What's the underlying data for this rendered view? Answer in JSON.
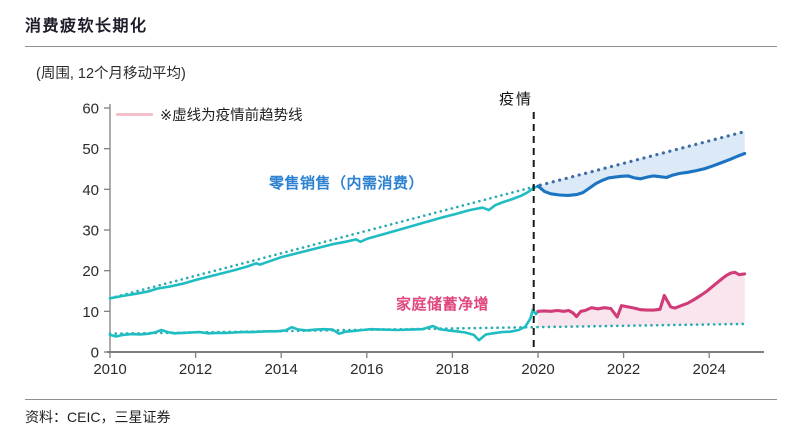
{
  "header": {
    "title": "消费疲软长期化"
  },
  "footer": {
    "source": "资料：CEIC，三星证券"
  },
  "chart_data": {
    "type": "line",
    "subtitle": "(周围, 12个月移动平均)",
    "note": "※虚线为疫情前趋势线",
    "pandemic_label": "疫情",
    "pandemic_x": 2019.9,
    "labels": {
      "retail": "零售销售（内需消费）",
      "savings": "家庭储蓄净增"
    },
    "xlim": [
      2010,
      2025.1
    ],
    "ylim": [
      0,
      60
    ],
    "x_ticks": [
      2010,
      2012,
      2014,
      2016,
      2018,
      2020,
      2022,
      2024
    ],
    "y_ticks": [
      0,
      10,
      20,
      30,
      40,
      50,
      60
    ],
    "grid": false,
    "legend_position": "none",
    "colors": {
      "teal": "#1fbdc2",
      "blue": "#1b74c2",
      "pink": "#d13c78",
      "blue_trend": "#3d6da6",
      "teal_trend": "#27abb1",
      "blue_fill": "#dce9f6",
      "pink_fill": "#f9e5ee",
      "axis": "#7f7f7f",
      "tick_text": "#2b2b2b",
      "pandemic_line": "#1a1a1a",
      "note_swatch": "#f5bfca",
      "retail_label": "#2e82d2",
      "savings_label": "#e0487f"
    },
    "series": [
      {
        "id": "retail-trend-pre",
        "name": "零售销售疫情前趋势线",
        "dotted": true,
        "color": "teal_trend",
        "points": [
          [
            2010.0,
            13.2
          ],
          [
            2019.9,
            40.6
          ]
        ]
      },
      {
        "id": "retail-trend-post",
        "name": "零售销售疫情前趋势线(延长)",
        "dotted": true,
        "color": "blue_trend",
        "points": [
          [
            2019.9,
            40.6
          ],
          [
            2024.83,
            54.2
          ]
        ]
      },
      {
        "id": "savings-trend",
        "name": "家庭储蓄疫情前趋势线",
        "dotted": true,
        "color": "teal_trend",
        "points": [
          [
            2010.0,
            4.5
          ],
          [
            2024.83,
            6.9
          ]
        ]
      },
      {
        "id": "retail-pre",
        "name": "零售销售（内需消费）2010-2020",
        "dotted": false,
        "color": "teal",
        "points": [
          [
            2010.0,
            13.2
          ],
          [
            2010.3,
            13.8
          ],
          [
            2010.6,
            14.3
          ],
          [
            2010.9,
            14.9
          ],
          [
            2011.1,
            15.6
          ],
          [
            2011.4,
            16.1
          ],
          [
            2011.7,
            16.8
          ],
          [
            2012.0,
            17.7
          ],
          [
            2012.3,
            18.5
          ],
          [
            2012.6,
            19.3
          ],
          [
            2012.9,
            20.1
          ],
          [
            2013.2,
            21.0
          ],
          [
            2013.42,
            21.8
          ],
          [
            2013.5,
            21.5
          ],
          [
            2013.7,
            22.2
          ],
          [
            2014.0,
            23.3
          ],
          [
            2014.3,
            24.1
          ],
          [
            2014.6,
            24.9
          ],
          [
            2014.9,
            25.7
          ],
          [
            2015.2,
            26.5
          ],
          [
            2015.5,
            27.1
          ],
          [
            2015.75,
            27.7
          ],
          [
            2015.85,
            27.1
          ],
          [
            2016.0,
            27.8
          ],
          [
            2016.3,
            28.7
          ],
          [
            2016.6,
            29.6
          ],
          [
            2016.9,
            30.5
          ],
          [
            2017.2,
            31.4
          ],
          [
            2017.5,
            32.3
          ],
          [
            2017.8,
            33.2
          ],
          [
            2018.1,
            34.0
          ],
          [
            2018.4,
            34.9
          ],
          [
            2018.7,
            35.5
          ],
          [
            2018.85,
            34.9
          ],
          [
            2019.0,
            36.1
          ],
          [
            2019.2,
            36.9
          ],
          [
            2019.4,
            37.6
          ],
          [
            2019.6,
            38.4
          ],
          [
            2019.75,
            39.2
          ],
          [
            2019.9,
            40.3
          ],
          [
            2020.0,
            40.8
          ]
        ]
      },
      {
        "id": "retail-post",
        "name": "零售销售（内需消费）2020-2024",
        "dotted": false,
        "color": "blue",
        "points": [
          [
            2020.0,
            40.8
          ],
          [
            2020.15,
            39.5
          ],
          [
            2020.3,
            38.9
          ],
          [
            2020.5,
            38.6
          ],
          [
            2020.7,
            38.5
          ],
          [
            2020.9,
            38.7
          ],
          [
            2021.05,
            39.2
          ],
          [
            2021.2,
            40.3
          ],
          [
            2021.35,
            41.4
          ],
          [
            2021.5,
            42.2
          ],
          [
            2021.65,
            42.8
          ],
          [
            2021.8,
            43.0
          ],
          [
            2021.95,
            43.2
          ],
          [
            2022.1,
            43.3
          ],
          [
            2022.25,
            42.8
          ],
          [
            2022.4,
            42.6
          ],
          [
            2022.55,
            43.0
          ],
          [
            2022.7,
            43.3
          ],
          [
            2022.85,
            43.1
          ],
          [
            2023.0,
            42.9
          ],
          [
            2023.15,
            43.5
          ],
          [
            2023.3,
            43.9
          ],
          [
            2023.5,
            44.2
          ],
          [
            2023.7,
            44.6
          ],
          [
            2023.9,
            45.1
          ],
          [
            2024.1,
            45.8
          ],
          [
            2024.3,
            46.6
          ],
          [
            2024.5,
            47.4
          ],
          [
            2024.65,
            48.1
          ],
          [
            2024.83,
            48.8
          ]
        ]
      },
      {
        "id": "savings-pre",
        "name": "家庭储蓄净增 2010-2020",
        "dotted": false,
        "color": "teal",
        "points": [
          [
            2010.0,
            4.2
          ],
          [
            2010.15,
            3.8
          ],
          [
            2010.3,
            4.2
          ],
          [
            2010.5,
            4.4
          ],
          [
            2010.7,
            4.3
          ],
          [
            2010.9,
            4.5
          ],
          [
            2011.05,
            4.8
          ],
          [
            2011.2,
            5.4
          ],
          [
            2011.35,
            4.9
          ],
          [
            2011.5,
            4.6
          ],
          [
            2011.7,
            4.7
          ],
          [
            2011.9,
            4.8
          ],
          [
            2012.1,
            4.9
          ],
          [
            2012.3,
            4.6
          ],
          [
            2012.5,
            4.7
          ],
          [
            2012.7,
            4.7
          ],
          [
            2012.9,
            4.8
          ],
          [
            2013.1,
            4.9
          ],
          [
            2013.3,
            4.9
          ],
          [
            2013.5,
            5.0
          ],
          [
            2013.7,
            5.1
          ],
          [
            2013.9,
            5.1
          ],
          [
            2014.1,
            5.3
          ],
          [
            2014.25,
            6.1
          ],
          [
            2014.4,
            5.5
          ],
          [
            2014.6,
            5.3
          ],
          [
            2014.8,
            5.5
          ],
          [
            2015.0,
            5.6
          ],
          [
            2015.2,
            5.5
          ],
          [
            2015.35,
            4.5
          ],
          [
            2015.5,
            5.0
          ],
          [
            2015.7,
            5.2
          ],
          [
            2015.9,
            5.4
          ],
          [
            2016.1,
            5.6
          ],
          [
            2016.4,
            5.5
          ],
          [
            2016.7,
            5.4
          ],
          [
            2017.0,
            5.5
          ],
          [
            2017.3,
            5.6
          ],
          [
            2017.55,
            6.4
          ],
          [
            2017.7,
            5.6
          ],
          [
            2017.9,
            5.3
          ],
          [
            2018.1,
            5.1
          ],
          [
            2018.3,
            4.8
          ],
          [
            2018.5,
            4.2
          ],
          [
            2018.62,
            2.9
          ],
          [
            2018.78,
            4.3
          ],
          [
            2018.95,
            4.6
          ],
          [
            2019.15,
            4.9
          ],
          [
            2019.35,
            5.0
          ],
          [
            2019.55,
            5.4
          ],
          [
            2019.7,
            6.2
          ],
          [
            2019.82,
            8.2
          ],
          [
            2019.88,
            10.4
          ],
          [
            2019.95,
            9.3
          ],
          [
            2020.0,
            10.0
          ]
        ]
      },
      {
        "id": "savings-post",
        "name": "家庭储蓄净增 2020-2024",
        "dotted": false,
        "color": "pink",
        "points": [
          [
            2020.0,
            10.0
          ],
          [
            2020.15,
            10.1
          ],
          [
            2020.3,
            10.0
          ],
          [
            2020.45,
            10.2
          ],
          [
            2020.6,
            10.0
          ],
          [
            2020.72,
            10.2
          ],
          [
            2020.82,
            9.6
          ],
          [
            2020.9,
            8.7
          ],
          [
            2021.0,
            10.0
          ],
          [
            2021.1,
            10.2
          ],
          [
            2021.25,
            10.9
          ],
          [
            2021.4,
            10.6
          ],
          [
            2021.55,
            10.9
          ],
          [
            2021.7,
            10.7
          ],
          [
            2021.85,
            8.6
          ],
          [
            2021.95,
            11.4
          ],
          [
            2022.1,
            11.1
          ],
          [
            2022.25,
            10.8
          ],
          [
            2022.4,
            10.4
          ],
          [
            2022.55,
            10.3
          ],
          [
            2022.7,
            10.3
          ],
          [
            2022.85,
            10.5
          ],
          [
            2022.95,
            13.9
          ],
          [
            2023.1,
            11.1
          ],
          [
            2023.2,
            10.8
          ],
          [
            2023.35,
            11.4
          ],
          [
            2023.5,
            12.0
          ],
          [
            2023.65,
            12.9
          ],
          [
            2023.8,
            13.9
          ],
          [
            2023.95,
            15.0
          ],
          [
            2024.1,
            16.3
          ],
          [
            2024.25,
            17.6
          ],
          [
            2024.4,
            18.8
          ],
          [
            2024.5,
            19.4
          ],
          [
            2024.6,
            19.6
          ],
          [
            2024.7,
            19.0
          ],
          [
            2024.83,
            19.2
          ]
        ]
      }
    ],
    "bands": [
      {
        "id": "retail-gap-fill",
        "upper": "retail-trend-post",
        "lower": "retail-post",
        "color": "blue_fill",
        "from": 2020.0,
        "to": 2024.83
      },
      {
        "id": "savings-gap-fill",
        "upper": "savings-post",
        "lower": "savings-trend",
        "color": "pink_fill",
        "from": 2020.0,
        "to": 2024.83
      }
    ]
  }
}
